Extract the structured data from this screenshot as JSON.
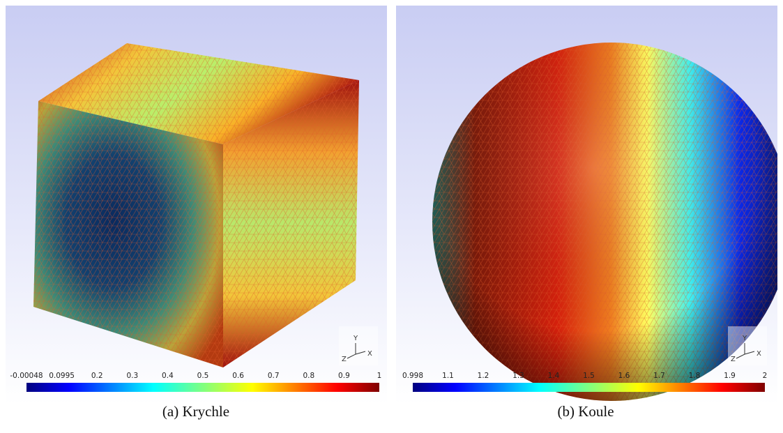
{
  "panels": [
    {
      "colorbar": {
        "ticks": [
          "-0.00048",
          "0.0995",
          "0.2",
          "0.3",
          "0.4",
          "0.5",
          "0.6",
          "0.7",
          "0.8",
          "0.9",
          "1"
        ]
      },
      "axes": {
        "y": "Y",
        "z": "Z",
        "x": "X"
      },
      "caption": "(a) Krychle"
    },
    {
      "colorbar": {
        "ticks": [
          "0.998",
          "1.1",
          "1.2",
          "1.3",
          "1.4",
          "1.5",
          "1.6",
          "1.7",
          "1.8",
          "1.9",
          "2"
        ]
      },
      "axes": {
        "y": "Y",
        "z": "Z",
        "x": "X"
      },
      "caption": "(b) Koule"
    }
  ]
}
